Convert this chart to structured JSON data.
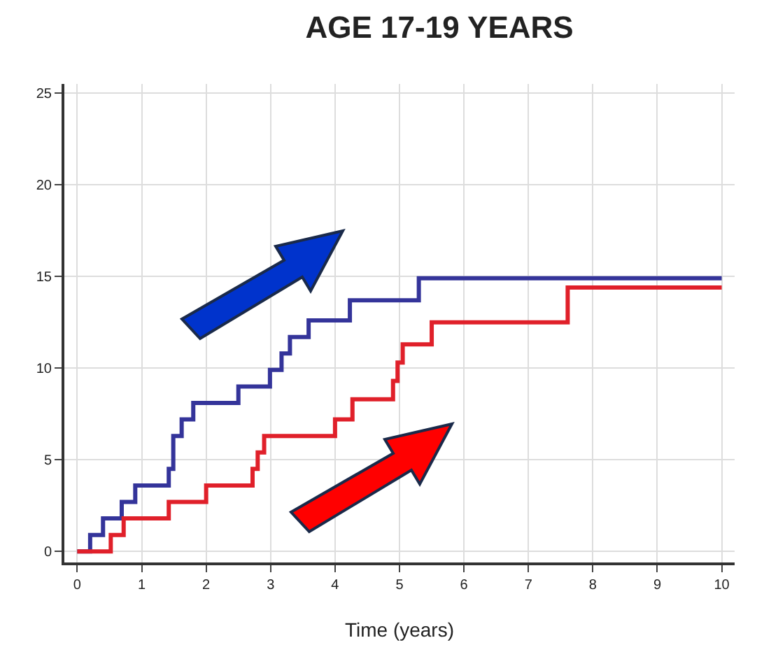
{
  "chart_data": {
    "type": "step",
    "title": "AGE 17-19 YEARS",
    "xlabel": "Time (years)",
    "xlim": [
      -0.2,
      10.2
    ],
    "xticks": [
      0,
      1,
      2,
      3,
      4,
      5,
      6,
      7,
      8,
      9,
      10
    ],
    "ylim": [
      -0.6,
      25.5
    ],
    "yticks": [
      0,
      5,
      10,
      15,
      20,
      25
    ],
    "grid": true,
    "line_style": "solid",
    "marker": "none",
    "series": [
      {
        "color": "#34349a",
        "x": [
          0,
          0.2,
          0.4,
          0.69,
          0.9,
          1.42,
          1.49,
          1.62,
          1.8,
          2.5,
          2.99,
          3.17,
          3.3,
          3.59,
          4.23,
          5.3,
          10
        ],
        "values": [
          0,
          0.9,
          1.8,
          2.7,
          3.6,
          4.5,
          6.3,
          7.2,
          8.1,
          9.0,
          9.9,
          10.8,
          11.7,
          12.6,
          13.7,
          14.9,
          14.9
        ]
      },
      {
        "color": "#e0202a",
        "x": [
          0,
          0.52,
          0.72,
          1.42,
          2.0,
          2.72,
          2.8,
          2.9,
          4.0,
          4.27,
          4.9,
          4.97,
          5.05,
          5.5,
          7.61,
          10
        ],
        "values": [
          0,
          0.9,
          1.8,
          2.7,
          3.6,
          4.5,
          5.4,
          6.3,
          7.2,
          8.3,
          9.3,
          10.3,
          11.3,
          12.5,
          14.4,
          14.4
        ]
      }
    ]
  }
}
